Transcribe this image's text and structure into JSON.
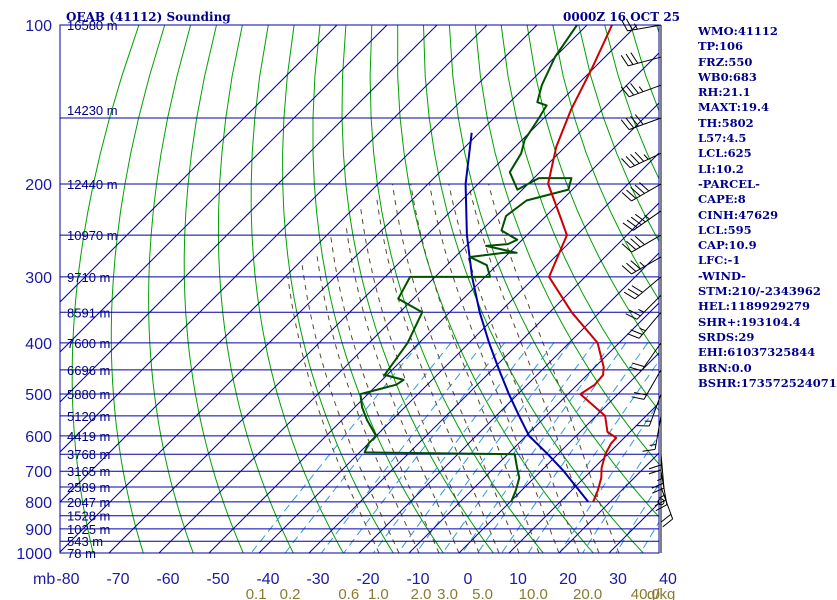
{
  "chart_data": {
    "type": "skew-t sounding",
    "title": "OEAB (41112) Sounding",
    "datetime": "0000Z 16 OCT 25",
    "pressure_unit_label": "mb",
    "mixing_ratio_unit_label": "g/kg",
    "pressure_ticks": [
      100,
      200,
      300,
      400,
      500,
      600,
      700,
      800,
      900,
      1000
    ],
    "temperature_ticks": [
      -80,
      -70,
      -60,
      -50,
      -40,
      -30,
      -20,
      -10,
      0,
      10,
      20,
      30,
      40
    ],
    "temperature_tick_labels": [
      "-80",
      "-70",
      "-60",
      "-50",
      "-40",
      "-30",
      "-20",
      "-10",
      "0",
      "10",
      "20",
      "30",
      "40"
    ],
    "mixing_ratio_labels": [
      "0.1",
      "0.2",
      "0.6",
      "1.0",
      "2.0",
      "3.0",
      "5.0",
      "10.0",
      "20.0",
      "40.0"
    ],
    "height_labels": [
      {
        "p": 100,
        "label": "16580 m"
      },
      {
        "p": 145,
        "label": "14230 m"
      },
      {
        "p": 200,
        "label": "12440 m"
      },
      {
        "p": 250,
        "label": "10970 m"
      },
      {
        "p": 300,
        "label": "9710 m"
      },
      {
        "p": 350,
        "label": "8591 m"
      },
      {
        "p": 400,
        "label": "7600 m"
      },
      {
        "p": 450,
        "label": "6696 m"
      },
      {
        "p": 500,
        "label": "5880 m"
      },
      {
        "p": 550,
        "label": "5120 m"
      },
      {
        "p": 600,
        "label": "4419 m"
      },
      {
        "p": 650,
        "label": "3768 m"
      },
      {
        "p": 700,
        "label": "3165 m"
      },
      {
        "p": 750,
        "label": "2589 m"
      },
      {
        "p": 800,
        "label": "2047 m"
      },
      {
        "p": 850,
        "label": "1528 m"
      },
      {
        "p": 900,
        "label": "1025 m"
      },
      {
        "p": 950,
        "label": "543 m"
      },
      {
        "p": 1000,
        "label": "78 m"
      }
    ],
    "temperature_profile": {
      "name": "Temperature",
      "color": "#cc0000",
      "points": [
        [
          800,
          16.6
        ],
        [
          760,
          15.2
        ],
        [
          720,
          13.4
        ],
        [
          690,
          11.5
        ],
        [
          650,
          9.5
        ],
        [
          620,
          8.5
        ],
        [
          605,
          8.4
        ],
        [
          590,
          5.5
        ],
        [
          550,
          1.8
        ],
        [
          500,
          -7.5
        ],
        [
          480,
          -6.5
        ],
        [
          460,
          -6.8
        ],
        [
          445,
          -8.2
        ],
        [
          400,
          -14.3
        ],
        [
          350,
          -25.6
        ],
        [
          300,
          -37.2
        ],
        [
          250,
          -42.0
        ],
        [
          230,
          -47.2
        ],
        [
          200,
          -56.0
        ],
        [
          170,
          -61.8
        ],
        [
          145,
          -66.2
        ],
        [
          120,
          -70.5
        ],
        [
          100,
          -75.0
        ]
      ]
    },
    "dewpoint_profile": {
      "name": "Dewpoint",
      "color": "#005000",
      "points": [
        [
          800,
          0.2
        ],
        [
          760,
          -1.2
        ],
        [
          720,
          -3.0
        ],
        [
          690,
          -5.4
        ],
        [
          660,
          -7.8
        ],
        [
          650,
          -8.6
        ],
        [
          645,
          -39.0
        ],
        [
          620,
          -40.0
        ],
        [
          600,
          -40.0
        ],
        [
          560,
          -45.0
        ],
        [
          530,
          -48.5
        ],
        [
          500,
          -51.5
        ],
        [
          480,
          -46.2
        ],
        [
          470,
          -45.7
        ],
        [
          460,
          -50.5
        ],
        [
          400,
          -52.3
        ],
        [
          350,
          -55.5
        ],
        [
          330,
          -63.0
        ],
        [
          300,
          -65.0
        ],
        [
          300,
          -49.0
        ],
        [
          285,
          -52.0
        ],
        [
          275,
          -57.0
        ],
        [
          270,
          -51.0
        ],
        [
          270,
          -48.5
        ],
        [
          262,
          -56.0
        ],
        [
          260,
          -52.0
        ],
        [
          255,
          -51.0
        ],
        [
          245,
          -56.0
        ],
        [
          230,
          -58.0
        ],
        [
          215,
          -57.0
        ],
        [
          205,
          -50.8
        ],
        [
          195,
          -52.5
        ],
        [
          195,
          -59.0
        ],
        [
          205,
          -61.0
        ],
        [
          190,
          -66.0
        ],
        [
          175,
          -67.5
        ],
        [
          165,
          -69.5
        ],
        [
          150,
          -71.0
        ],
        [
          142,
          -72.0
        ],
        [
          140,
          -74.5
        ],
        [
          130,
          -77.0
        ],
        [
          115,
          -80.0
        ],
        [
          100,
          -82.0
        ]
      ]
    },
    "parcel_profile": {
      "name": "Parcel",
      "color": "#0000aa",
      "points": [
        [
          800,
          15.6
        ],
        [
          700,
          4.6
        ],
        [
          650,
          -2.0
        ],
        [
          600,
          -9.4
        ],
        [
          550,
          -15.4
        ],
        [
          500,
          -21.8
        ],
        [
          450,
          -28.6
        ],
        [
          400,
          -36.0
        ],
        [
          350,
          -44.0
        ],
        [
          300,
          -52.6
        ],
        [
          250,
          -62.0
        ],
        [
          200,
          -72.5
        ],
        [
          160,
          -81.5
        ]
      ]
    },
    "wind_barbs": [
      {
        "p": 100,
        "dir": 260,
        "spd": 25
      },
      {
        "p": 115,
        "dir": 255,
        "spd": 30
      },
      {
        "p": 130,
        "dir": 250,
        "spd": 35
      },
      {
        "p": 150,
        "dir": 250,
        "spd": 40
      },
      {
        "p": 175,
        "dir": 245,
        "spd": 45
      },
      {
        "p": 200,
        "dir": 240,
        "spd": 50
      },
      {
        "p": 225,
        "dir": 235,
        "spd": 45
      },
      {
        "p": 250,
        "dir": 240,
        "spd": 40
      },
      {
        "p": 275,
        "dir": 240,
        "spd": 35
      },
      {
        "p": 300,
        "dir": 230,
        "spd": 30
      },
      {
        "p": 325,
        "dir": 225,
        "spd": 25
      },
      {
        "p": 350,
        "dir": 220,
        "spd": 25
      },
      {
        "p": 400,
        "dir": 215,
        "spd": 20
      },
      {
        "p": 450,
        "dir": 210,
        "spd": 20
      },
      {
        "p": 500,
        "dir": 200,
        "spd": 15
      },
      {
        "p": 550,
        "dir": 190,
        "spd": 15
      },
      {
        "p": 600,
        "dir": 180,
        "spd": 20
      },
      {
        "p": 650,
        "dir": 175,
        "spd": 25
      },
      {
        "p": 700,
        "dir": 170,
        "spd": 25
      },
      {
        "p": 750,
        "dir": 160,
        "spd": 20
      },
      {
        "p": 800,
        "dir": 0,
        "spd": 0
      }
    ],
    "stats": [
      "WMO:41112",
      "TP:106",
      "FRZ:550",
      "WB0:683",
      "RH:21.1",
      "MAXT:19.4",
      "TH:5802",
      "L57:4.5",
      "LCL:625",
      "LI:10.2",
      "-PARCEL-",
      "CAPE:8",
      "CINH:47629",
      "LCL:595",
      "CAP:10.9",
      "LFC:-1",
      "-WIND-",
      "STM:210/-2343962",
      "HEL:1189929279",
      "SHR+:193104.4",
      "SRDS:29",
      "EHI:61037325844",
      "BRN:0.0",
      "BSHR:173572524071"
    ],
    "colors": {
      "isobar": "#0000aa",
      "isotherm": "#0000aa",
      "dry_adiabat": "#00a000",
      "moist_adiabat": "#5a4a2a",
      "mixing_ratio": "#3399dd",
      "title": "#00008b",
      "temperature": "#cc0000",
      "dewpoint": "#005000",
      "parcel": "#0000aa"
    }
  }
}
